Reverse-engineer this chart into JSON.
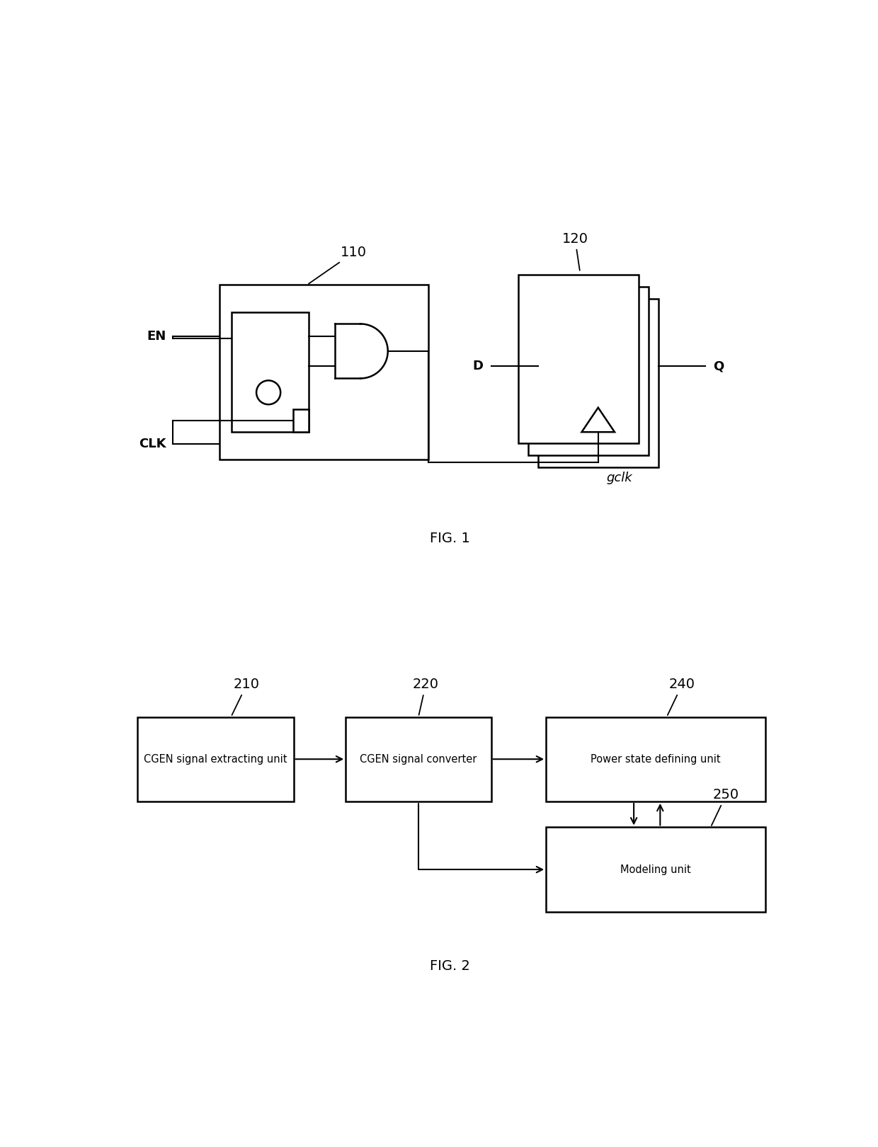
{
  "bg_color": "#ffffff",
  "fig_width": 12.4,
  "fig_height": 16.2,
  "fig1_label": "FIG. 1",
  "fig2_label": "FIG. 2",
  "label_110": "110",
  "label_120": "120",
  "label_210": "210",
  "label_220": "220",
  "label_240": "240",
  "label_250": "250",
  "text_EN": "EN",
  "text_CLK": "CLK",
  "text_D": "D",
  "text_Q": "Q",
  "text_gclk": "gclk",
  "box_210_label": "CGEN signal extracting unit",
  "box_220_label": "CGEN signal converter",
  "box_240_label": "Power state defining unit",
  "box_250_label": "Modeling unit",
  "lw": 1.8,
  "lw_thin": 1.5
}
